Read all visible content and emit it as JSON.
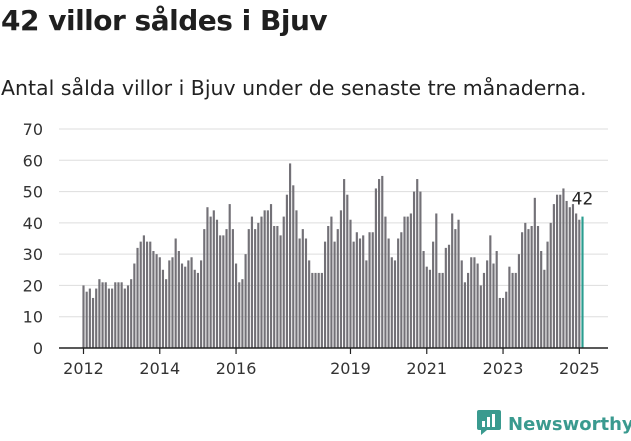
{
  "title": "42 villor såldes i Bjuv",
  "subtitle": "Antal sålda villor i Bjuv under de senaste tre månaderna.",
  "brand": {
    "name": "Newsworthy",
    "logo_icon": "bar-chart-logo-icon"
  },
  "colors": {
    "bar": "#737177",
    "highlight": "#2a9d8f",
    "grid": "#dddddd",
    "axis": "#222222",
    "brand": "#3a9a8f"
  },
  "chart_data": {
    "type": "bar",
    "title": "42 villor såldes i Bjuv",
    "subtitle": "Antal sålda villor i Bjuv under de senaste tre månaderna.",
    "xlabel": "",
    "ylabel": "",
    "ylim": [
      0,
      70
    ],
    "yticks": [
      0,
      10,
      20,
      30,
      40,
      50,
      60,
      70
    ],
    "xticks": [
      {
        "label": "2012",
        "index": 0
      },
      {
        "label": "2014",
        "index": 24
      },
      {
        "label": "2016",
        "index": 48
      },
      {
        "label": "2019",
        "index": 84
      },
      {
        "label": "2021",
        "index": 108
      },
      {
        "label": "2023",
        "index": 132
      },
      {
        "label": "2025",
        "index": 156
      }
    ],
    "grid": true,
    "first_period": "2012-01",
    "highlight_last": true,
    "last_label": "42",
    "values": [
      20,
      18,
      19,
      16,
      19,
      22,
      21,
      21,
      19,
      19,
      21,
      21,
      21,
      19,
      20,
      22,
      27,
      32,
      34,
      36,
      34,
      34,
      31,
      30,
      29,
      25,
      22,
      28,
      29,
      35,
      31,
      27,
      26,
      28,
      29,
      25,
      24,
      28,
      38,
      45,
      42,
      44,
      41,
      36,
      36,
      38,
      46,
      38,
      27,
      21,
      22,
      30,
      38,
      42,
      38,
      40,
      42,
      44,
      44,
      46,
      39,
      39,
      36,
      42,
      49,
      59,
      52,
      44,
      35,
      38,
      35,
      28,
      24,
      24,
      24,
      24,
      34,
      39,
      42,
      34,
      38,
      44,
      54,
      49,
      41,
      34,
      37,
      35,
      36,
      28,
      37,
      37,
      51,
      54,
      55,
      42,
      35,
      29,
      28,
      35,
      37,
      42,
      42,
      43,
      50,
      54,
      50,
      31,
      26,
      25,
      34,
      43,
      24,
      24,
      32,
      33,
      43,
      38,
      41,
      28,
      21,
      24,
      29,
      29,
      27,
      20,
      24,
      28,
      36,
      27,
      31,
      16,
      16,
      18,
      26,
      24,
      24,
      30,
      37,
      40,
      38,
      39,
      48,
      39,
      31,
      25,
      34,
      40,
      46,
      49,
      49,
      51,
      47,
      45,
      46,
      43,
      41,
      42
    ]
  }
}
